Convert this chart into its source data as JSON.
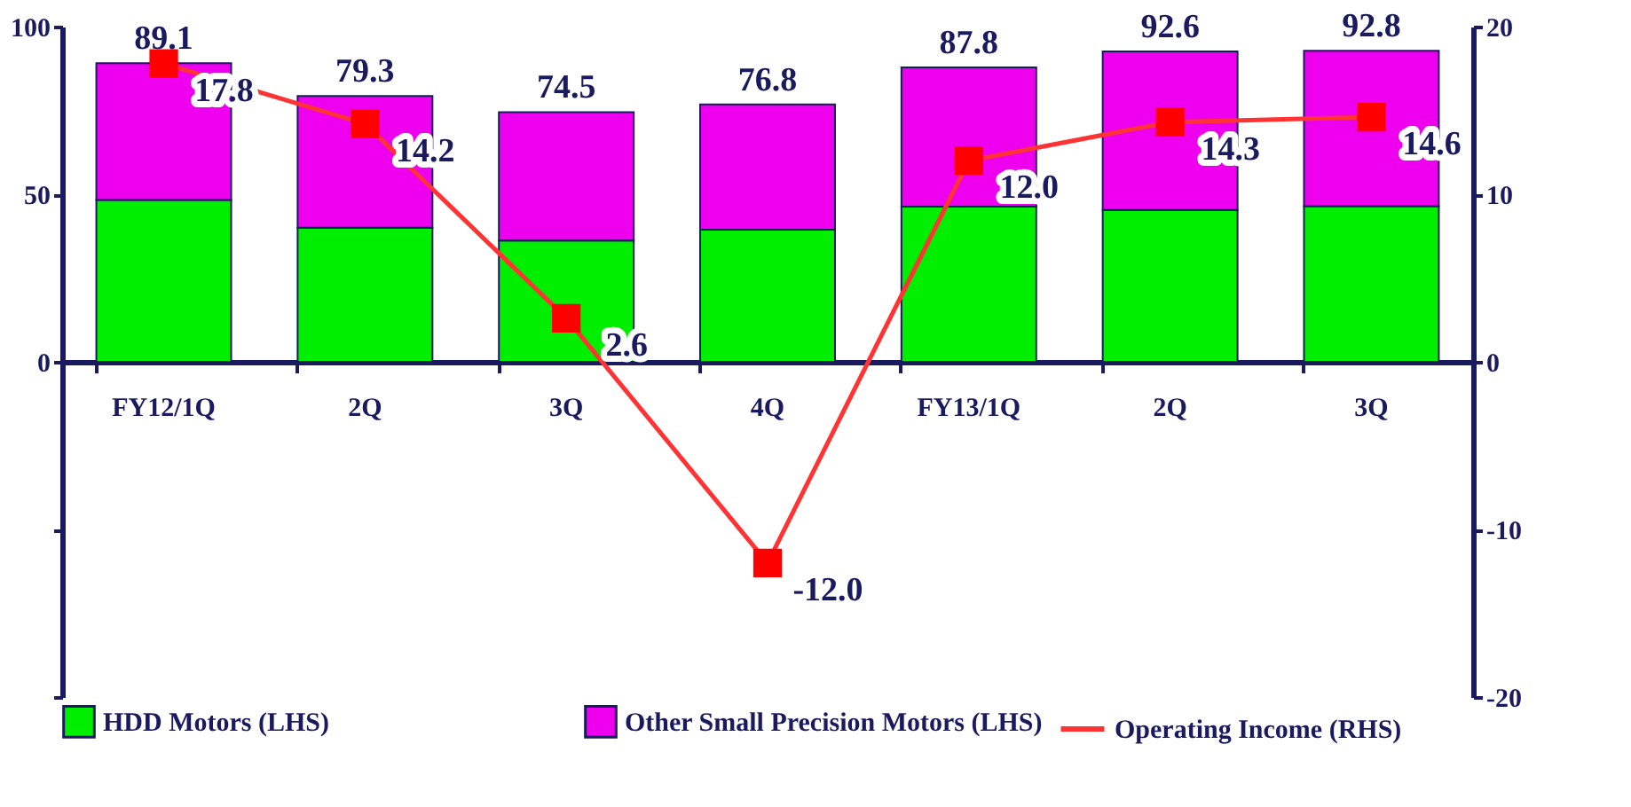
{
  "chart_data": {
    "type": "bar",
    "stacked": true,
    "categories": [
      "FY12/1Q",
      "2Q",
      "3Q",
      "4Q",
      "FY13/1Q",
      "2Q",
      "3Q"
    ],
    "series": [
      {
        "name": "HDD Motors (LHS)",
        "color": "#00ee00",
        "values": [
          48.3,
          40.0,
          36.2,
          39.4,
          46.3,
          45.3,
          46.4
        ]
      },
      {
        "name": "Other Small Precision Motors (LHS)",
        "color": "#ee00ee",
        "values": [
          40.8,
          39.3,
          38.3,
          37.4,
          41.5,
          47.3,
          46.4
        ]
      },
      {
        "name": "Operating Income (RHS)",
        "type": "line",
        "axis": "y2",
        "color": "#ff3333",
        "marker": "square",
        "values": [
          17.8,
          14.2,
          2.6,
          -12.0,
          12.0,
          14.3,
          14.6
        ],
        "value_labels": [
          "17.8",
          "14.2",
          "2.6",
          "-12.0",
          "12.0",
          "14.3",
          "14.6"
        ]
      }
    ],
    "totals": [
      "89.1",
      "79.3",
      "74.5",
      "76.8",
      "87.8",
      "92.6",
      "92.8"
    ],
    "ylim": [
      -100,
      100
    ],
    "yticks": [
      100,
      50,
      0,
      {
        "value": -50,
        "label": null
      },
      {
        "value": -100,
        "label": null
      }
    ],
    "y2lim": [
      -20,
      20
    ],
    "y2ticks": [
      20,
      10,
      0,
      -10,
      -20
    ],
    "grid": false,
    "legend": "bottom"
  }
}
